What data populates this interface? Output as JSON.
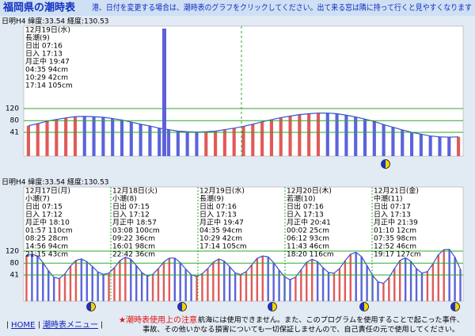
{
  "header": {
    "title": "福岡県の潮時表",
    "instruction": "港、日付を変更する場合は、潮時表のグラフをクリックしてください。出て来る窓は隣に持って行くと見やすくなります"
  },
  "chart_data": [
    {
      "type": "bar",
      "station": "日明H4 緯度:33.54 経度:130.53",
      "days": [
        {
          "date": "12月19日(水)",
          "lines": [
            "長潮(9)",
            "日出 07:16",
            "日入 17:13",
            "月正中 19:47",
            "04:35 94cm",
            "10:29 42cm",
            "17:14 105cm"
          ]
        }
      ],
      "values": [
        63,
        70,
        78,
        84,
        89,
        93,
        94,
        93,
        91,
        87,
        82,
        75,
        68,
        62,
        55,
        50,
        45,
        43,
        42,
        43,
        45,
        50,
        55,
        61,
        68,
        76,
        83,
        90,
        95,
        100,
        103,
        105,
        105,
        103,
        98,
        92,
        85,
        77,
        67,
        58,
        49,
        41,
        35,
        29,
        26,
        25,
        26
      ],
      "ylim": [
        -38,
        394
      ],
      "yticks": [
        41,
        80,
        120
      ],
      "grid": true,
      "colors": {
        "rising": "#e05a5a",
        "falling": "#5a64dc",
        "line": "#3b4fd0",
        "grid": "#2aa82a"
      }
    },
    {
      "type": "bar",
      "station": "日明H4 緯度:33.54 経度:130.53",
      "days": [
        {
          "date": "12月17日(月)",
          "lines": [
            "小潮(7)",
            "日出 07:15",
            "日入 17:12",
            "月正中 18:10",
            "01:57 110cm",
            "08:25 28cm",
            "14:56 94cm",
            "21:15 43cm"
          ]
        },
        {
          "date": "12月18日(火)",
          "lines": [
            "小潮(8)",
            "日出 07:15",
            "日入 17:12",
            "月正中 18:57",
            "03:08 100cm",
            "09:22 36cm",
            "16:01 98cm",
            "22:42 36cm"
          ]
        },
        {
          "date": "12月19日(水)",
          "lines": [
            "長潮(9)",
            "日出 07:16",
            "日入 17:13",
            "月正中 19:47",
            "04:35 94cm",
            "10:29 42cm",
            "17:14 105cm"
          ]
        },
        {
          "date": "12月20日(木)",
          "lines": [
            "若潮(10)",
            "日出 07:16",
            "日入 17:13",
            "月正中 20:41",
            "00:02 25cm",
            "06:12 93cm",
            "11:43 46cm",
            "18:20 116cm"
          ]
        },
        {
          "date": "12月21日(金)",
          "lines": [
            "中潮(11)",
            "日出 07:17",
            "日入 17:13",
            "月正中 21:39",
            "01:10 12cm",
            "07:35 98cm",
            "12:52 46cm",
            "19:17 127cm"
          ]
        }
      ],
      "values": [
        105,
        110,
        104,
        82,
        55,
        33,
        29,
        45,
        70,
        89,
        94,
        85,
        69,
        51,
        43,
        47,
        65,
        88,
        100,
        93,
        72,
        49,
        37,
        43,
        62,
        84,
        97,
        97,
        82,
        60,
        42,
        36,
        45,
        62,
        83,
        94,
        87,
        68,
        48,
        42,
        52,
        74,
        96,
        104,
        101,
        82,
        57,
        35,
        25,
        34,
        58,
        83,
        93,
        85,
        65,
        49,
        47,
        62,
        88,
        110,
        116,
        102,
        72,
        40,
        18,
        13,
        32,
        62,
        89,
        98,
        86,
        62,
        47,
        52,
        78,
        108,
        125,
        126,
        100,
        60
      ],
      "ylim": [
        -46,
        333
      ],
      "yticks": [
        41,
        80,
        120
      ],
      "grid": true,
      "colors": {
        "rising": "#e05a5a",
        "falling": "#5a64dc",
        "line": "#3b4fd0",
        "grid": "#2aa82a"
      }
    }
  ],
  "nav": {
    "separator": "|",
    "links": [
      "HOME",
      "潮時表メニュー"
    ]
  },
  "notice": {
    "heading": "★潮時表使用上の注意",
    "lines": [
      "航海には使用できません。また、このプログラムを使用することで起こった事件、",
      "事故、その他いかなる損害についても一切保証しませんので、自己責任の元で使用してください。"
    ]
  }
}
